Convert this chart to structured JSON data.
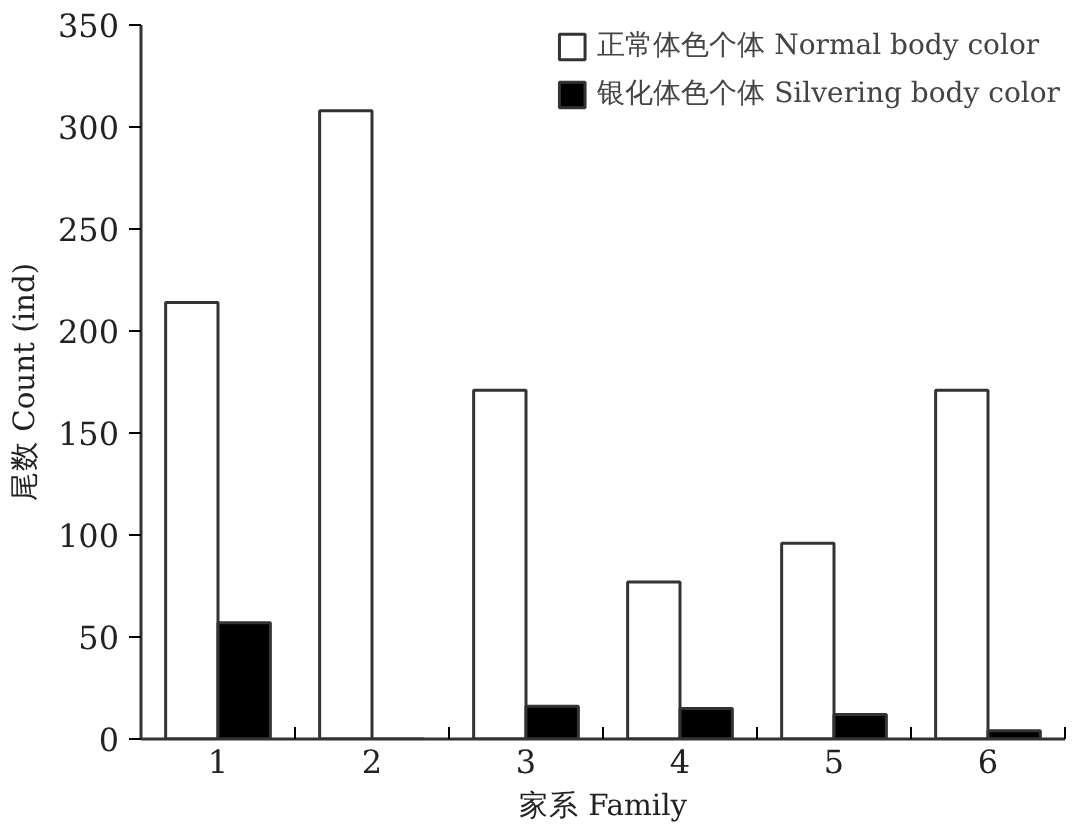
{
  "chart_data": {
    "type": "bar",
    "xlabel": "家系 Family",
    "ylabel": "尾数 Count (ind)",
    "categories": [
      "1",
      "2",
      "3",
      "4",
      "5",
      "6"
    ],
    "series": [
      {
        "name": "正常体色个体 Normal body color",
        "color": "#ffffff",
        "values": [
          214,
          308,
          171,
          77,
          96,
          171
        ]
      },
      {
        "name": "银化体色个体 Silvering body color",
        "color": "#000000",
        "values": [
          57,
          0,
          16,
          15,
          12,
          4
        ]
      }
    ],
    "ylim": [
      0,
      350
    ],
    "yticks": [
      0,
      50,
      100,
      150,
      200,
      250,
      300,
      350
    ],
    "grid": false,
    "legend": "top right"
  }
}
